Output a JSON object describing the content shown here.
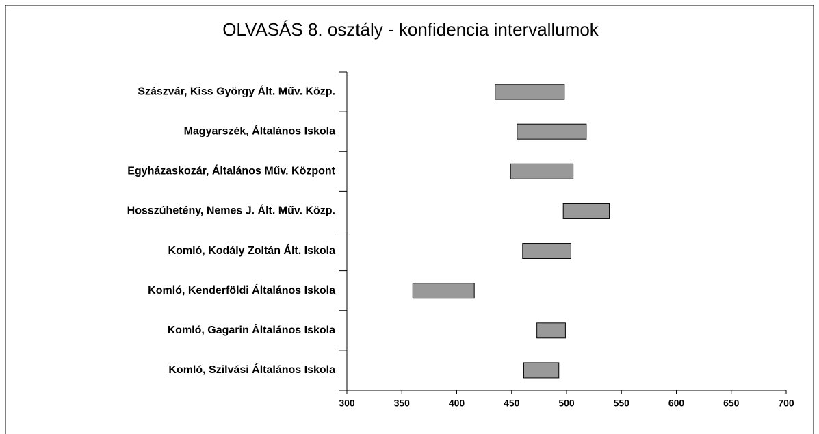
{
  "chart_data": {
    "type": "range_bar",
    "title": "OLVASÁS 8. osztály  -  konfidencia intervallumok",
    "categories": [
      "Szászvár, Kiss György Ált. Műv. Közp.",
      "Magyarszék, Általános Iskola",
      "Egyházaskozár, Általános Műv. Központ",
      "Hosszúhetény, Nemes J. Ált. Műv. Közp.",
      "Komló, Kodály Zoltán Ált. Iskola",
      "Komló, Kenderföldi Általános Iskola",
      "Komló, Gagarin Általános Iskola",
      "Komló, Szilvási Általános Iskola"
    ],
    "low": [
      435,
      455,
      449,
      497,
      460,
      360,
      473,
      461
    ],
    "high": [
      498,
      518,
      506,
      539,
      504,
      416,
      499,
      493
    ],
    "color": "#999999",
    "xlim": [
      300,
      700
    ],
    "xticks": [
      300,
      350,
      400,
      450,
      500,
      550,
      600,
      650,
      700
    ]
  }
}
